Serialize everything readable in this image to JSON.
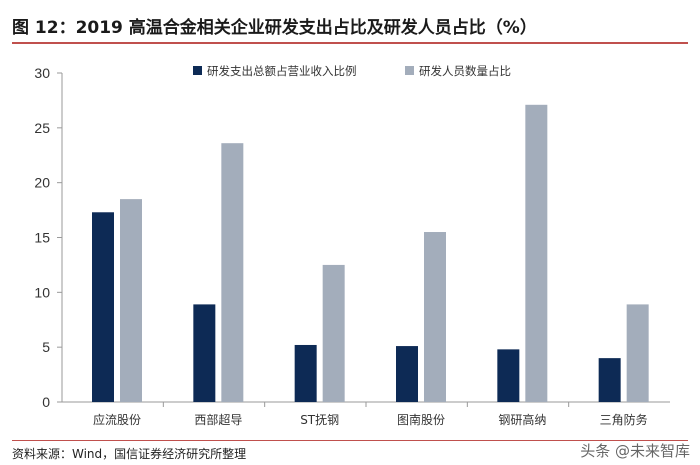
{
  "title": "图 12：2019 高温合金相关企业研发支出占比及研发人员占比（%）",
  "source": "资料来源：Wind，国信证券经济研究所整理",
  "watermark": "头条 @未来智库",
  "colors": {
    "series1": "#0d2a55",
    "series2": "#a3adbb",
    "accent": "#c0504d",
    "axis": "#9a9a9a"
  },
  "chart_data": {
    "type": "bar",
    "categories": [
      "应流股份",
      "西部超导",
      "ST抚钢",
      "图南股份",
      "钢研高纳",
      "三角防务"
    ],
    "series": [
      {
        "name": "研发支出总额占营业收入比例",
        "values": [
          17.3,
          8.9,
          5.2,
          5.1,
          4.8,
          4.0
        ]
      },
      {
        "name": "研发人员数量占比",
        "values": [
          18.5,
          23.6,
          12.5,
          15.5,
          27.1,
          8.9
        ]
      }
    ],
    "ylim": [
      0,
      30
    ],
    "yticks": [
      0,
      5,
      10,
      15,
      20,
      25,
      30
    ],
    "grid": false,
    "legend_position": "top"
  }
}
